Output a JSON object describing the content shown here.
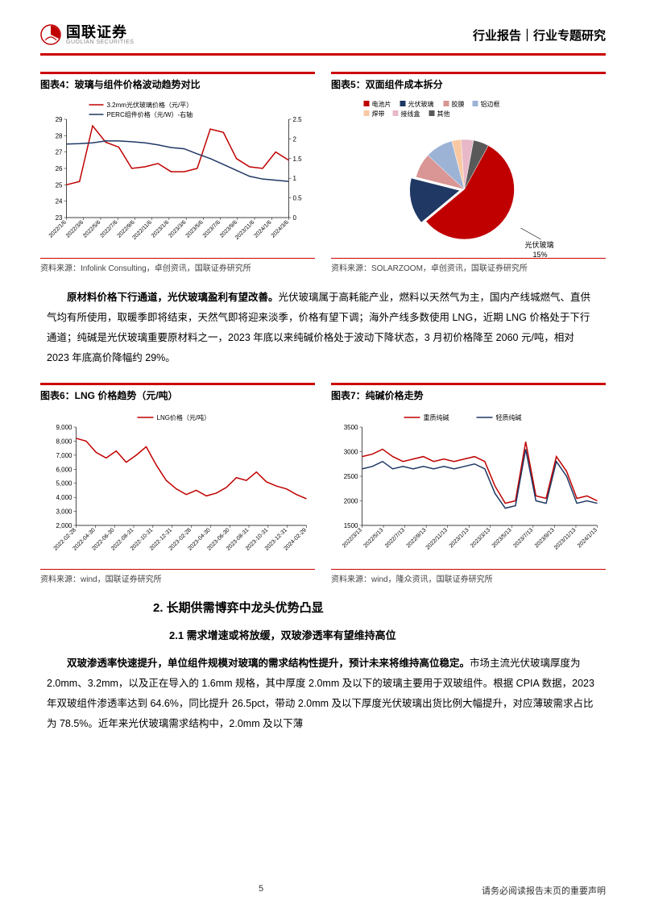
{
  "header": {
    "logo_cn": "国联证券",
    "logo_en": "GUOLIAN SECURITIES",
    "logo_color": "#c00000",
    "report_type": "行业报告｜行业专题研究"
  },
  "chart4": {
    "title": "图表4：玻璃与组件价格波动趋势对比",
    "type": "line",
    "legend": [
      "3.2mm光伏玻璃价格（元/平）",
      "PERC组件价格（元/W）-右轴"
    ],
    "legend_colors": [
      "#c00000",
      "#1f3864"
    ],
    "x_labels": [
      "2022/1/6",
      "2022/3/6",
      "2022/5/6",
      "2022/7/6",
      "2022/9/6",
      "2022/11/6",
      "2023/1/6",
      "2023/3/6",
      "2023/5/6",
      "2023/7/6",
      "2023/9/6",
      "2023/11/6",
      "2024/1/6",
      "2024/3/6"
    ],
    "y1_min": 23,
    "y1_max": 29,
    "y1_step": 1,
    "y2_min": 0,
    "y2_max": 2.5,
    "y2_step": 0.5,
    "series1": [
      25.0,
      25.2,
      28.6,
      27.6,
      27.3,
      26.0,
      26.1,
      26.3,
      25.8,
      25.8,
      26.0,
      28.4,
      28.2,
      26.6,
      26.1,
      26.0,
      27.0,
      26.5
    ],
    "series2": [
      1.87,
      1.88,
      1.9,
      1.95,
      1.95,
      1.93,
      1.9,
      1.85,
      1.78,
      1.75,
      1.62,
      1.5,
      1.35,
      1.2,
      1.05,
      0.98,
      0.95,
      0.92
    ],
    "line_width": 1.5,
    "background": "#ffffff",
    "axis_color": "#000",
    "source": "资料来源：Infolink Consulting，卓创资讯，国联证券研究所"
  },
  "chart5": {
    "title": "图表5：双面组件成本拆分",
    "type": "pie",
    "legend": [
      "电池片",
      "光伏玻璃",
      "胶膜",
      "铝边框",
      "焊带",
      "接线盒",
      "其他"
    ],
    "colors": [
      "#c00000",
      "#1f3864",
      "#d99694",
      "#9cb3d6",
      "#f9c9a3",
      "#e8b8c8",
      "#595959"
    ],
    "values": [
      56,
      15,
      8,
      9,
      3,
      4,
      5
    ],
    "callout_label": "光伏玻璃",
    "callout_value": "15%",
    "background": "#ffffff",
    "source": "资料来源：SOLARZOOM，卓创资讯，国联证券研究所"
  },
  "paragraph1": {
    "bold": "原材料价格下行通道，光伏玻璃盈利有望改善。",
    "text": "光伏玻璃属于高耗能产业，燃料以天然气为主，国内产线城燃气、直供气均有所使用，取暖季即将结束，天然气即将迎来淡季，价格有望下调；海外产线多数使用 LNG，近期 LNG 价格处于下行通道；纯碱是光伏玻璃重要原材料之一，2023 年底以来纯碱价格处于波动下降状态，3 月初价格降至 2060 元/吨，相对 2023 年底高价降幅约 29%。"
  },
  "chart6": {
    "title": "图表6：LNG 价格趋势（元/吨）",
    "type": "line",
    "legend": [
      "LNG价格（元/吨）"
    ],
    "legend_colors": [
      "#c00000"
    ],
    "x_labels": [
      "2022-02-28",
      "2022-04-30",
      "2022-06-30",
      "2022-08-31",
      "2022-10-31",
      "2022-12-31",
      "2023-02-28",
      "2023-04-30",
      "2023-06-30",
      "2023-08-31",
      "2023-10-31",
      "2023-12-31",
      "2024-02-29"
    ],
    "y_min": 2000,
    "y_max": 9000,
    "y_step": 1000,
    "series1": [
      8200,
      8000,
      7200,
      6800,
      7300,
      6500,
      7000,
      7600,
      6300,
      5200,
      4600,
      4200,
      4500,
      4100,
      4300,
      4700,
      5400,
      5200,
      5800,
      5100,
      4800,
      4600,
      4200,
      3900
    ],
    "line_width": 1.5,
    "background": "#ffffff",
    "source": "资料来源：wind，国联证券研究所"
  },
  "chart7": {
    "title": "图表7：纯碱价格走势",
    "type": "line",
    "legend": [
      "重质纯碱",
      "轻质纯碱"
    ],
    "legend_colors": [
      "#c00000",
      "#1f3864"
    ],
    "x_labels": [
      "2022/3/13",
      "2022/5/13",
      "2022/7/13",
      "2022/9/13",
      "2022/11/13",
      "2023/1/13",
      "2023/3/13",
      "2023/5/13",
      "2023/7/13",
      "2023/9/13",
      "2023/11/13",
      "2024/1/13"
    ],
    "y_min": 1500,
    "y_max": 3500,
    "y_step": 500,
    "series1": [
      2900,
      2950,
      3050,
      2900,
      2800,
      2850,
      2900,
      2800,
      2850,
      2800,
      2850,
      2900,
      2800,
      2300,
      1950,
      2000,
      3200,
      2100,
      2050,
      2900,
      2600,
      2050,
      2100,
      2000
    ],
    "series2": [
      2650,
      2700,
      2800,
      2650,
      2700,
      2650,
      2700,
      2650,
      2700,
      2650,
      2700,
      2750,
      2650,
      2150,
      1850,
      1900,
      3050,
      2000,
      1950,
      2800,
      2500,
      1950,
      2000,
      1950
    ],
    "line_width": 1.5,
    "background": "#ffffff",
    "source": "资料来源：wind，隆众资讯，国联证券研究所"
  },
  "section2": {
    "h2": "2.  长期供需博弈中龙头优势凸显",
    "h3": "2.1 需求增速或将放缓，双玻渗透率有望维持高位"
  },
  "paragraph2": {
    "bold": "双玻渗透率快速提升，单位组件规模对玻璃的需求结构性提升，预计未来将维持高位稳定。",
    "text": "市场主流光伏玻璃厚度为 2.0mm、3.2mm，以及正在导入的 1.6mm 规格，其中厚度 2.0mm 及以下的玻璃主要用于双玻组件。根据 CPIA 数据，2023 年双玻组件渗透率达到 64.6%，同比提升 26.5pct，带动 2.0mm 及以下厚度光伏玻璃出货比例大幅提升，对应薄玻需求占比为 78.5%。近年来光伏玻璃需求结构中，2.0mm 及以下薄"
  },
  "footer": {
    "page_num": "5",
    "disclaimer": "请务必阅读报告末页的重要声明"
  }
}
